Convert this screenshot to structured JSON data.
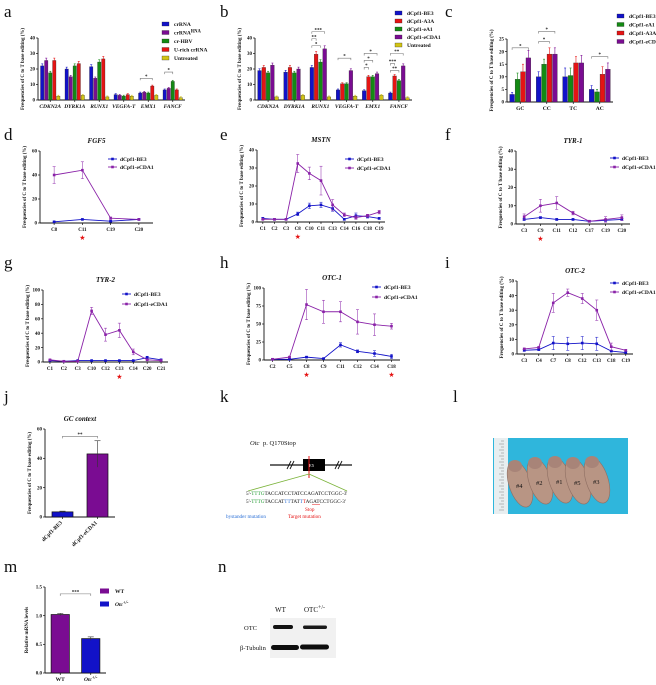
{
  "panels": {
    "a": "a",
    "b": "b",
    "c": "c",
    "d": "d",
    "e": "e",
    "f": "f",
    "g": "g",
    "h": "h",
    "i": "i",
    "j": "j",
    "k": "k",
    "l": "l",
    "m": "m",
    "n": "n"
  },
  "colors": {
    "blue": "#1212c8",
    "purple": "#7a0c92",
    "green": "#138a13",
    "red": "#e51414",
    "yellow": "#d2c414",
    "line_purple": "#8a22a8"
  },
  "chart_data": [
    {
      "panel": "a",
      "type": "bar",
      "title": "",
      "ylabel": "Frequencies of C to T base editing (%)",
      "ylim": [
        0,
        40
      ],
      "yticks": [
        0,
        10,
        20,
        30,
        40
      ],
      "italic_ticks": true,
      "categories": [
        "CDKN2A",
        "DYRK1A",
        "RUNX1",
        "VEGFA-T",
        "EMX1",
        "FANCF"
      ],
      "series": [
        {
          "name": "crRNA",
          "color": "#1212c8",
          "values": [
            22,
            20,
            21.5,
            3.5,
            4.5,
            6.5
          ]
        },
        {
          "name": "crRNA^RNA",
          "color": "#7a0c92",
          "values": [
            25.5,
            15,
            14,
            3,
            5,
            7.5
          ]
        },
        {
          "name": "cr-HBV",
          "color": "#138a13",
          "values": [
            17.5,
            22,
            24.5,
            2.5,
            4.5,
            12
          ]
        },
        {
          "name": "U-rich crRNA",
          "color": "#e51414",
          "values": [
            25.5,
            23.5,
            26.5,
            3.5,
            9,
            6.5
          ]
        },
        {
          "name": "Untreated",
          "color": "#d2c414",
          "values": [
            2.5,
            3,
            2,
            2.5,
            3,
            1.5
          ]
        }
      ],
      "annotations": [
        {
          "category": 4,
          "from": 0,
          "to": 3,
          "y": 14,
          "label": "*"
        },
        {
          "category": 5,
          "from": 0,
          "to": 2,
          "y": 18,
          "label": "*"
        }
      ]
    },
    {
      "panel": "b",
      "type": "bar",
      "title": "",
      "ylabel": "Frequencies of C to T base editing (%)",
      "ylim": [
        0,
        40
      ],
      "yticks": [
        0,
        10,
        20,
        30,
        40
      ],
      "italic_ticks": true,
      "categories": [
        "CDKN2A",
        "DYRK1A",
        "RUNX1",
        "VEGFA-T",
        "EMX1",
        "FANCF"
      ],
      "series": [
        {
          "name": "dCpf1-BE3",
          "color": "#1212c8",
          "values": [
            19,
            18,
            21,
            6.5,
            6,
            4.5
          ]
        },
        {
          "name": "dCpf1-A3A",
          "color": "#e51414",
          "values": [
            21,
            21,
            29.5,
            10.5,
            15,
            15.5
          ]
        },
        {
          "name": "dCpf1-eA1",
          "color": "#138a13",
          "values": [
            17.5,
            17.5,
            24.5,
            10.5,
            15,
            12.5
          ]
        },
        {
          "name": "dCpf1-eCDA1",
          "color": "#7a0c92",
          "values": [
            22.5,
            20,
            33,
            19,
            17,
            22
          ]
        },
        {
          "name": "Untreated",
          "color": "#d2c414",
          "values": [
            2,
            3,
            2,
            2.5,
            3,
            1.5
          ]
        }
      ],
      "annotations": [
        {
          "category": 2,
          "from": 0,
          "to": 3,
          "y": 42,
          "label": "***"
        },
        {
          "category": 2,
          "from": 0,
          "to": 1,
          "y": 37,
          "label": "**"
        },
        {
          "category": 2,
          "from": 0,
          "to": 2,
          "y": 35,
          "label": "*"
        },
        {
          "category": 3,
          "from": 0,
          "to": 3,
          "y": 27,
          "label": "*"
        },
        {
          "category": 4,
          "from": 0,
          "to": 1,
          "y": 21,
          "label": "*"
        },
        {
          "category": 4,
          "from": 0,
          "to": 2,
          "y": 24,
          "label": "*"
        },
        {
          "category": 4,
          "from": 0,
          "to": 3,
          "y": 28,
          "label": "*"
        },
        {
          "category": 5,
          "from": 0,
          "to": 3,
          "y": 30,
          "label": "**"
        },
        {
          "category": 5,
          "from": 0,
          "to": 1,
          "y": 21,
          "label": "***"
        },
        {
          "category": 5,
          "from": 0,
          "to": 2,
          "y": 19,
          "label": "**"
        }
      ]
    },
    {
      "panel": "c",
      "type": "bar",
      "title": "",
      "ylabel": "Frequencies of C to T base editing (%)",
      "ylim": [
        0,
        25
      ],
      "yticks": [
        0,
        5,
        10,
        15,
        20,
        25
      ],
      "italic_ticks": false,
      "categories": [
        "GC",
        "CC",
        "TC",
        "AC"
      ],
      "series": [
        {
          "name": "dCpf1-BE3",
          "color": "#1212c8",
          "values": [
            3,
            10,
            10,
            5
          ],
          "err": [
            0.8,
            2,
            3.5,
            1.5
          ]
        },
        {
          "name": "dCpf1-eA1",
          "color": "#138a13",
          "values": [
            9,
            15,
            10.5,
            4
          ],
          "err": [
            2.5,
            2,
            3,
            1
          ]
        },
        {
          "name": "dCpf1-A3A",
          "color": "#e51414",
          "values": [
            12,
            19,
            15.5,
            11
          ],
          "err": [
            3,
            2.5,
            2.5,
            3
          ]
        },
        {
          "name": "dCpf1-eCDA1",
          "color": "#7a0c92",
          "values": [
            17.5,
            19,
            15.5,
            13
          ],
          "err": [
            3,
            2.5,
            3,
            2.5
          ]
        }
      ],
      "annotations": [
        {
          "category": 0,
          "from": 0,
          "to": 3,
          "y": 21.5,
          "label": "*"
        },
        {
          "category": 1,
          "from": 0,
          "to": 3,
          "y": 28,
          "label": "*"
        },
        {
          "category": 1,
          "from": 0,
          "to": 2,
          "y": 24,
          "label": "*"
        },
        {
          "category": 3,
          "from": 0,
          "to": 3,
          "y": 18,
          "label": "*"
        }
      ]
    },
    {
      "panel": "d",
      "type": "line",
      "title": "FGF5",
      "ylabel": "Frequencies of C to T base editing (%)",
      "ylim": [
        0,
        60
      ],
      "yticks": [
        0,
        20,
        40,
        60
      ],
      "categories": [
        "C8",
        "C11",
        "C19",
        "C20"
      ],
      "target_sites": [
        1
      ],
      "series": [
        {
          "name": "dCpf1-BE3",
          "color": "#1212c8",
          "values": [
            1,
            3,
            1.5,
            3
          ],
          "err": [
            0.5,
            0.5,
            0.5,
            0.5
          ]
        },
        {
          "name": "dCpf1-eCDA1",
          "color": "#8a22a8",
          "values": [
            40,
            44,
            4,
            3
          ],
          "err": [
            7,
            7,
            1,
            0.5
          ]
        }
      ]
    },
    {
      "panel": "e",
      "type": "line",
      "title": "MSTN",
      "ylabel": "Frequencies of C to T base editing (%)",
      "ylim": [
        0,
        40
      ],
      "yticks": [
        0,
        10,
        20,
        30,
        40
      ],
      "categories": [
        "C1",
        "C2",
        "C3",
        "C8",
        "C10",
        "C11",
        "C13",
        "C14",
        "C16",
        "C18",
        "C19"
      ],
      "target_sites": [
        3
      ],
      "series": [
        {
          "name": "dCpf1-BE3",
          "color": "#1212c8",
          "values": [
            2,
            1.5,
            1.5,
            4.5,
            9,
            9.5,
            7.5,
            1.5,
            3.5,
            3,
            2
          ],
          "err": [
            0.5,
            0.3,
            0.3,
            1,
            1.5,
            1.5,
            1.5,
            0.5,
            1.5,
            0.8,
            0.5
          ]
        },
        {
          "name": "dCpf1-eCDA1",
          "color": "#8a22a8",
          "values": [
            1.5,
            1.5,
            1.5,
            32.5,
            27,
            23,
            9.5,
            4,
            2.5,
            3.5,
            5.5
          ],
          "err": [
            0.3,
            0.3,
            0.3,
            5,
            3.5,
            8,
            3,
            1,
            1,
            0.8,
            1
          ]
        }
      ]
    },
    {
      "panel": "f",
      "type": "line",
      "title": "TYR-1",
      "ylabel": "Frequencies of C to T base editing (%)",
      "ylim": [
        0,
        40
      ],
      "yticks": [
        0,
        10,
        20,
        30,
        40
      ],
      "categories": [
        "C3",
        "C9",
        "C11",
        "C12",
        "C17",
        "C19",
        "C20"
      ],
      "target_sites": [
        1
      ],
      "series": [
        {
          "name": "dCpf1-BE3",
          "color": "#1212c8",
          "values": [
            2.5,
            3.5,
            2.5,
            2.5,
            1.5,
            2,
            2.5
          ],
          "err": [
            0.5,
            0.5,
            0.5,
            0.5,
            0.5,
            0.5,
            0.5
          ]
        },
        {
          "name": "dCpf1-eCDA1",
          "color": "#8a22a8",
          "values": [
            4,
            10,
            11.5,
            6,
            1.5,
            2.5,
            3.5
          ],
          "err": [
            1.5,
            3.5,
            3.5,
            1,
            0.5,
            1.5,
            1.5
          ]
        }
      ]
    },
    {
      "panel": "g",
      "type": "line",
      "title": "TYR-2",
      "ylabel": "Frequencies of C to T base editing (%)",
      "ylim": [
        0,
        100
      ],
      "yticks": [
        0,
        20,
        40,
        60,
        80,
        100
      ],
      "categories": [
        "C1",
        "C2",
        "C3",
        "C10",
        "C12",
        "C13",
        "C14",
        "C20",
        "C21"
      ],
      "target_sites": [
        5
      ],
      "series": [
        {
          "name": "dCpf1-BE3",
          "color": "#1212c8",
          "values": [
            2,
            1,
            2,
            2,
            2,
            2,
            2,
            6,
            3
          ],
          "err": [
            0.5,
            0.5,
            0.5,
            0.5,
            0.5,
            0.5,
            0.5,
            2,
            1
          ]
        },
        {
          "name": "dCpf1-eCDA1",
          "color": "#8a22a8",
          "values": [
            3,
            1,
            1,
            71,
            38,
            44,
            14,
            3,
            2
          ],
          "err": [
            1,
            0.5,
            0.5,
            5,
            9,
            10,
            4,
            1,
            1
          ]
        }
      ]
    },
    {
      "panel": "h",
      "type": "line",
      "title": "OTC-1",
      "ylabel": "Frequencies of C to T base editing (%)",
      "ylim": [
        0,
        100
      ],
      "yticks": [
        0,
        25,
        50,
        75,
        100
      ],
      "categories": [
        "C2",
        "C5",
        "C8",
        "C9",
        "C11",
        "C12",
        "C14",
        "C18"
      ],
      "target_sites": [
        2,
        7
      ],
      "series": [
        {
          "name": "dCpf1-BE3",
          "color": "#1212c8",
          "values": [
            1,
            1,
            4,
            2,
            21,
            12,
            9,
            5
          ],
          "err": [
            0.5,
            0.5,
            1,
            0.5,
            3,
            2,
            4,
            3
          ]
        },
        {
          "name": "dCpf1-eCDA1",
          "color": "#8a22a8",
          "values": [
            1,
            4,
            77,
            67,
            67,
            53,
            49,
            47
          ],
          "err": [
            0.5,
            1,
            21,
            16,
            14,
            17,
            15,
            4
          ]
        }
      ]
    },
    {
      "panel": "i",
      "type": "line",
      "title": "OTC-2",
      "ylabel": "Frequencies of C to T base editing (%)",
      "ylim": [
        0,
        50
      ],
      "yticks": [
        0,
        10,
        20,
        30,
        40,
        50
      ],
      "categories": [
        "C3",
        "C4",
        "C7",
        "C8",
        "C12",
        "C13",
        "C18",
        "C19"
      ],
      "target_sites": [],
      "series": [
        {
          "name": "dCpf1-BE3",
          "color": "#1212c8",
          "values": [
            2.5,
            3,
            7.5,
            7,
            7.5,
            7,
            2,
            1
          ],
          "err": [
            0.5,
            0.5,
            4.5,
            4.5,
            4.5,
            4.5,
            0.5,
            0.5
          ]
        },
        {
          "name": "dCpf1-eCDA1",
          "color": "#8a22a8",
          "values": [
            3.5,
            4.5,
            35,
            42,
            38,
            30,
            5,
            2.5
          ],
          "err": [
            0.5,
            0.5,
            6.5,
            2.5,
            3.5,
            7,
            2.5,
            0.5
          ]
        }
      ]
    },
    {
      "panel": "j",
      "type": "bar_single",
      "title": "GC context",
      "ylabel": "Frequencies of C to T base editing (%)",
      "ylim": [
        0,
        60
      ],
      "yticks": [
        0,
        20,
        40,
        60
      ],
      "rotate_ticks": true,
      "categories": [
        "dCpf1-BE3",
        "dCpf1-eCDA1"
      ],
      "values": [
        3.5,
        43
      ],
      "err": [
        0.5,
        9
      ],
      "colors": [
        "#1212c8",
        "#7a0c92"
      ],
      "annotations": [
        {
          "from": 0,
          "to": 1,
          "y": 55,
          "label": "**"
        }
      ]
    },
    {
      "panel": "m",
      "type": "bar_single",
      "title": "",
      "ylabel": "Relative mRNA levels",
      "ylim": [
        0,
        1.5
      ],
      "yticks": [
        0,
        0.5,
        1.0,
        1.5
      ],
      "ytick_labels": [
        "0.0",
        "0.5",
        "1.0",
        "1.5"
      ],
      "categories": [
        "WT",
        "Otc^+/-"
      ],
      "values": [
        1.02,
        0.6
      ],
      "err": [
        0.02,
        0.03
      ],
      "colors": [
        "#7a0c92",
        "#1212c8"
      ],
      "legend": [
        "WT",
        "Otc^+/-"
      ],
      "annotations": [
        {
          "from": 0,
          "to": 1,
          "y": 1.38,
          "label": "***"
        }
      ]
    }
  ],
  "diagram_k": {
    "gene_label": "Otc",
    "mutation_label": "p. Q170Stop",
    "exon_label": "E5",
    "seq1": [
      {
        "t": "5'-",
        "c": "#111"
      },
      {
        "t": "TTTG",
        "c": "#1f9a2f"
      },
      {
        "t": "TACCATCCTATCCAGATCCTGGC-3'",
        "c": "#111"
      }
    ],
    "seq2": [
      {
        "t": "5'-",
        "c": "#111"
      },
      {
        "t": "TTTG",
        "c": "#1f9a2f"
      },
      {
        "t": "TACCAT",
        "c": "#111"
      },
      {
        "t": "TT",
        "c": "#2a6fd6"
      },
      {
        "t": "TAT",
        "c": "#111"
      },
      {
        "t": "T",
        "c": "#2a6fd6"
      },
      {
        "t": "T",
        "c": "#e51414"
      },
      {
        "t": "AGATCCTGGC-3'",
        "c": "#111"
      }
    ],
    "stop_label": "Stop",
    "bystander_label": "bystander mutation",
    "target_label": "Target mutation"
  },
  "photo_l": {
    "labels": [
      "#4",
      "#2",
      "#1",
      "#5",
      "#3"
    ]
  },
  "blot_n": {
    "lanes": [
      "WT",
      "OTC^+/-"
    ],
    "rows": [
      "OTC",
      "β-Tubulin"
    ]
  }
}
